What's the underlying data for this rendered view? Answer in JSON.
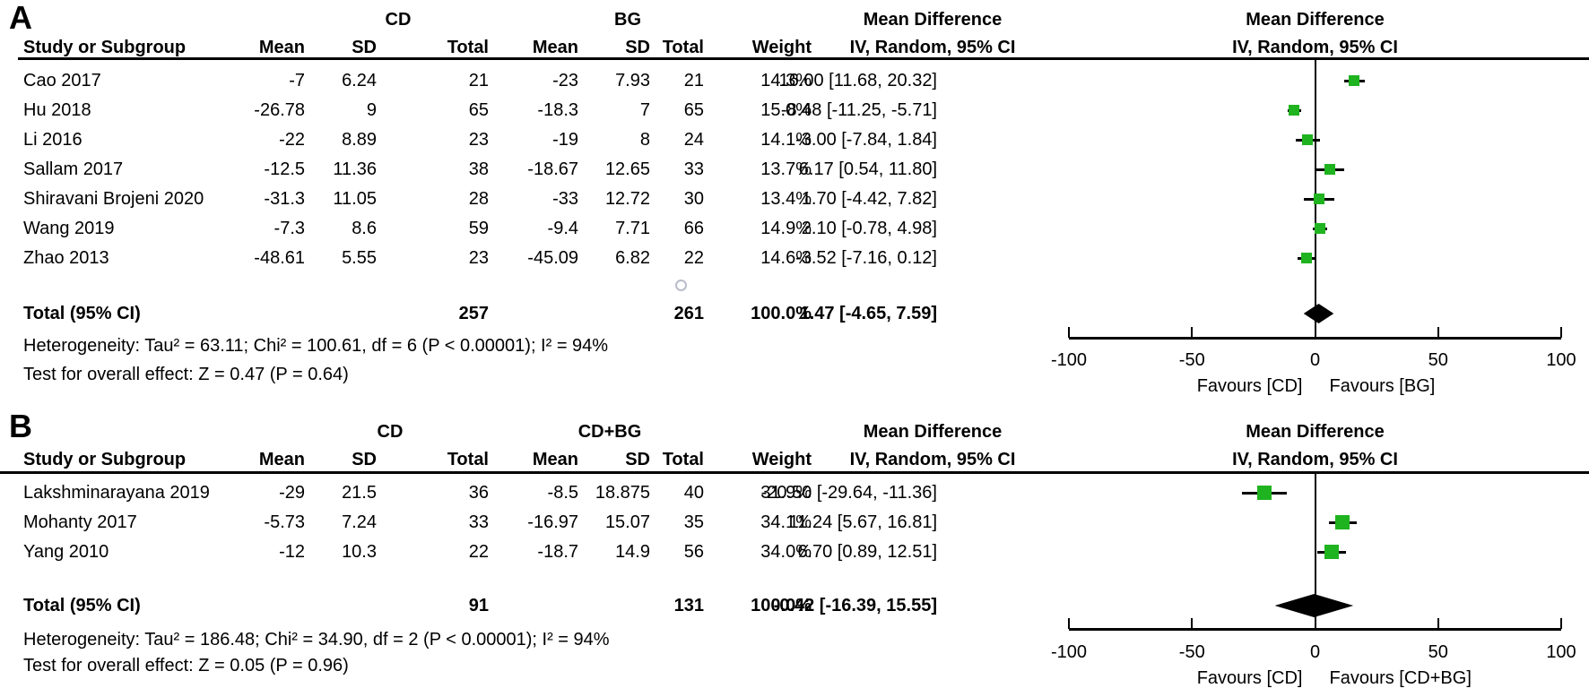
{
  "chart_data": [
    {
      "type": "forest",
      "panel_label": "A",
      "group_headers": [
        "CD",
        "BG"
      ],
      "effect_header": [
        "Mean Difference",
        "IV, Random, 95% CI"
      ],
      "table_columns": [
        "Study or Subgroup",
        "Mean",
        "SD",
        "Total",
        "Mean",
        "SD",
        "Total",
        "Weight",
        "IV, Random, 95% CI"
      ],
      "studies": [
        {
          "name": "Cao 2017",
          "mean1": "-7",
          "sd1": "6.24",
          "n1": "21",
          "mean2": "-23",
          "sd2": "7.93",
          "n2": "21",
          "weight": "14.3%",
          "ci_text": "16.00 [11.68, 20.32]",
          "est": 16.0,
          "lo": 11.68,
          "hi": 20.32
        },
        {
          "name": "Hu 2018",
          "mean1": "-26.78",
          "sd1": "9",
          "n1": "65",
          "mean2": "-18.3",
          "sd2": "7",
          "n2": "65",
          "weight": "15.0%",
          "ci_text": "-8.48 [-11.25, -5.71]",
          "est": -8.48,
          "lo": -11.25,
          "hi": -5.71
        },
        {
          "name": "Li 2016",
          "mean1": "-22",
          "sd1": "8.89",
          "n1": "23",
          "mean2": "-19",
          "sd2": "8",
          "n2": "24",
          "weight": "14.1%",
          "ci_text": "-3.00 [-7.84, 1.84]",
          "est": -3.0,
          "lo": -7.84,
          "hi": 1.84
        },
        {
          "name": "Sallam 2017",
          "mean1": "-12.5",
          "sd1": "11.36",
          "n1": "38",
          "mean2": "-18.67",
          "sd2": "12.65",
          "n2": "33",
          "weight": "13.7%",
          "ci_text": "6.17 [0.54, 11.80]",
          "est": 6.17,
          "lo": 0.54,
          "hi": 11.8
        },
        {
          "name": "Shiravani Brojeni 2020",
          "mean1": "-31.3",
          "sd1": "11.05",
          "n1": "28",
          "mean2": "-33",
          "sd2": "12.72",
          "n2": "30",
          "weight": "13.4%",
          "ci_text": "1.70 [-4.42, 7.82]",
          "est": 1.7,
          "lo": -4.42,
          "hi": 7.82
        },
        {
          "name": "Wang 2019",
          "mean1": "-7.3",
          "sd1": "8.6",
          "n1": "59",
          "mean2": "-9.4",
          "sd2": "7.71",
          "n2": "66",
          "weight": "14.9%",
          "ci_text": "2.10 [-0.78, 4.98]",
          "est": 2.1,
          "lo": -0.78,
          "hi": 4.98
        },
        {
          "name": "Zhao 2013",
          "mean1": "-48.61",
          "sd1": "5.55",
          "n1": "23",
          "mean2": "-45.09",
          "sd2": "6.82",
          "n2": "22",
          "weight": "14.6%",
          "ci_text": "-3.52 [-7.16, 0.12]",
          "est": -3.52,
          "lo": -7.16,
          "hi": 0.12
        }
      ],
      "total": {
        "label": "Total (95% CI)",
        "n1": "257",
        "n2": "261",
        "weight": "100.0%",
        "ci_text": "1.47 [-4.65, 7.59]",
        "est": 1.47,
        "lo": -4.65,
        "hi": 7.59
      },
      "heterogeneity": "Heterogeneity: Tau² = 63.11; Chi² = 100.61, df = 6 (P < 0.00001); I² = 94%",
      "overall_effect": "Test for overall effect: Z = 0.47 (P = 0.64)",
      "axis": {
        "min": -100,
        "max": 100,
        "ticks": [
          "-100",
          "-50",
          "0",
          "50",
          "100"
        ]
      },
      "favours_left": "Favours [CD]",
      "favours_right": "Favours [BG]",
      "marker_color": "#1fb31f"
    },
    {
      "type": "forest",
      "panel_label": "B",
      "group_headers": [
        "CD",
        "CD+BG"
      ],
      "effect_header": [
        "Mean Difference",
        "IV, Random, 95% CI"
      ],
      "table_columns": [
        "Study or Subgroup",
        "Mean",
        "SD",
        "Total",
        "Mean",
        "SD",
        "Total",
        "Weight",
        "IV, Random, 95% CI"
      ],
      "studies": [
        {
          "name": "Lakshminarayana 2019",
          "mean1": "-29",
          "sd1": "21.5",
          "n1": "36",
          "mean2": "-8.5",
          "sd2": "18.875",
          "n2": "40",
          "weight": "31.9%",
          "ci_text": "-20.50 [-29.64, -11.36]",
          "est": -20.5,
          "lo": -29.64,
          "hi": -11.36
        },
        {
          "name": "Mohanty 2017",
          "mean1": "-5.73",
          "sd1": "7.24",
          "n1": "33",
          "mean2": "-16.97",
          "sd2": "15.07",
          "n2": "35",
          "weight": "34.1%",
          "ci_text": "11.24 [5.67, 16.81]",
          "est": 11.24,
          "lo": 5.67,
          "hi": 16.81
        },
        {
          "name": "Yang 2010",
          "mean1": "-12",
          "sd1": "10.3",
          "n1": "22",
          "mean2": "-18.7",
          "sd2": "14.9",
          "n2": "56",
          "weight": "34.0%",
          "ci_text": "6.70 [0.89, 12.51]",
          "est": 6.7,
          "lo": 0.89,
          "hi": 12.51
        }
      ],
      "total": {
        "label": "Total (95% CI)",
        "n1": "91",
        "n2": "131",
        "weight": "100.0%",
        "ci_text": "-0.42 [-16.39, 15.55]",
        "est": -0.42,
        "lo": -16.39,
        "hi": 15.55
      },
      "heterogeneity": "Heterogeneity: Tau² = 186.48; Chi² = 34.90, df = 2 (P < 0.00001); I² = 94%",
      "overall_effect": "Test for overall effect: Z = 0.05 (P = 0.96)",
      "axis": {
        "min": -100,
        "max": 100,
        "ticks": [
          "-100",
          "-50",
          "0",
          "50",
          "100"
        ]
      },
      "favours_left": "Favours [CD]",
      "favours_right": "Favours [CD+BG]",
      "marker_color": "#1fb31f"
    }
  ]
}
